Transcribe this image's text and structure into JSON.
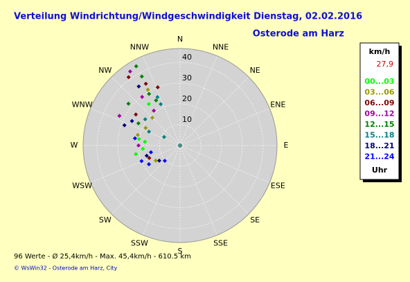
{
  "chart_data": {
    "type": "polar_scatter",
    "title": "Verteilung Windrichtung/Windgeschwindigkeit  Dienstag, 02.02.2016",
    "subtitle": "Osterode am Harz",
    "direction_labels": [
      "N",
      "NNE",
      "NE",
      "ENE",
      "E",
      "ESE",
      "SE",
      "SSE",
      "S",
      "SSW",
      "SW",
      "WSW",
      "W",
      "WNW",
      "NW",
      "NNW"
    ],
    "rlim": [
      0,
      46.7
    ],
    "rticks": [
      10,
      20,
      30,
      40
    ],
    "legend_unit": "km/h",
    "legend_value": "27,9",
    "legend_footer": "Uhr",
    "series": [
      {
        "name": "00...03",
        "color": "#00ff00",
        "theta": [
          279,
          265,
          276,
          259,
          323
        ],
        "r": [
          20,
          18,
          17,
          21.7,
          25
        ]
      },
      {
        "name": "03...06",
        "color": "#999900",
        "theta": [
          330,
          284,
          297,
          238,
          315
        ],
        "r": [
          31,
          21,
          18.6,
          13.8,
          18.9
        ]
      },
      {
        "name": "06...09",
        "color": "#800000",
        "theta": [
          323,
          331,
          305,
          248,
          339
        ],
        "r": [
          41.2,
          34,
          26,
          16,
          30
        ]
      },
      {
        "name": "09...12",
        "color": "#a000a0",
        "theta": [
          326,
          296,
          322,
          323,
          270
        ],
        "r": [
          43,
          32.5,
          29.7,
          21,
          20
        ]
      },
      {
        "name": "12...15",
        "color": "#008000",
        "theta": [
          331,
          331,
          329,
          298,
          332,
          309
        ],
        "r": [
          43.6,
          38,
          29,
          22.7,
          24.6,
          32
        ]
      },
      {
        "name": "15...18",
        "color": "#008080",
        "theta": [
          298,
          335,
          294,
          335,
          307
        ],
        "r": [
          8.7,
          22,
          16.4,
          25.7,
          21
        ]
      },
      {
        "name": "18...21",
        "color": "#000080",
        "theta": [
          325,
          234,
          297,
          253,
          290
        ],
        "r": [
          34.7,
          12.4,
          26,
          16.8,
          28.5
        ]
      },
      {
        "name": "21...24",
        "color": "#0000ff",
        "theta": [
          248,
          239,
          225,
          257,
          279
        ],
        "r": [
          20,
          17.5,
          10.4,
          14.4,
          22
        ]
      }
    ],
    "footer": "96 Werte   -   Ø 25,4km/h   -   Max. 45,4km/h   -   610.5 km",
    "credit": "© WsWin32  -  Osterode am Harz, City"
  }
}
